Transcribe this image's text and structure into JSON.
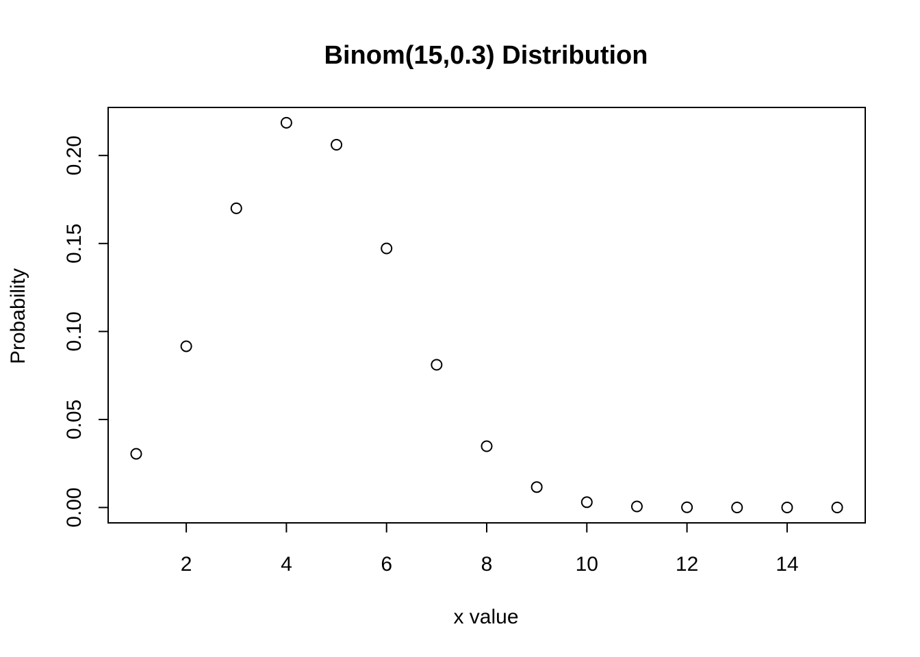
{
  "chart_data": {
    "type": "scatter",
    "title": "Binom(15,0.3) Distribution",
    "xlabel": "x value",
    "ylabel": "Probability",
    "x": [
      1,
      2,
      3,
      4,
      5,
      6,
      7,
      8,
      9,
      10,
      11,
      12,
      13,
      14,
      15
    ],
    "y": [
      0.0305,
      0.0916,
      0.17,
      0.2186,
      0.2061,
      0.1472,
      0.0811,
      0.0348,
      0.0116,
      0.003,
      0.0006,
      0.0001,
      0.0,
      0.0,
      0.0
    ],
    "xlim": [
      0.44,
      15.56
    ],
    "ylim": [
      -0.00874,
      0.2273
    ],
    "x_ticks": [
      2,
      4,
      6,
      8,
      10,
      12,
      14
    ],
    "x_tick_labels": [
      "2",
      "4",
      "6",
      "8",
      "10",
      "12",
      "14"
    ],
    "y_ticks": [
      0.0,
      0.05,
      0.1,
      0.15,
      0.2
    ],
    "y_tick_labels": [
      "0.00",
      "0.05",
      "0.10",
      "0.15",
      "0.20"
    ],
    "marker": "open-circle",
    "grid": false,
    "legend": "none",
    "colors": {
      "marker_stroke": "#000000",
      "axis": "#000000",
      "background": "#ffffff"
    }
  }
}
